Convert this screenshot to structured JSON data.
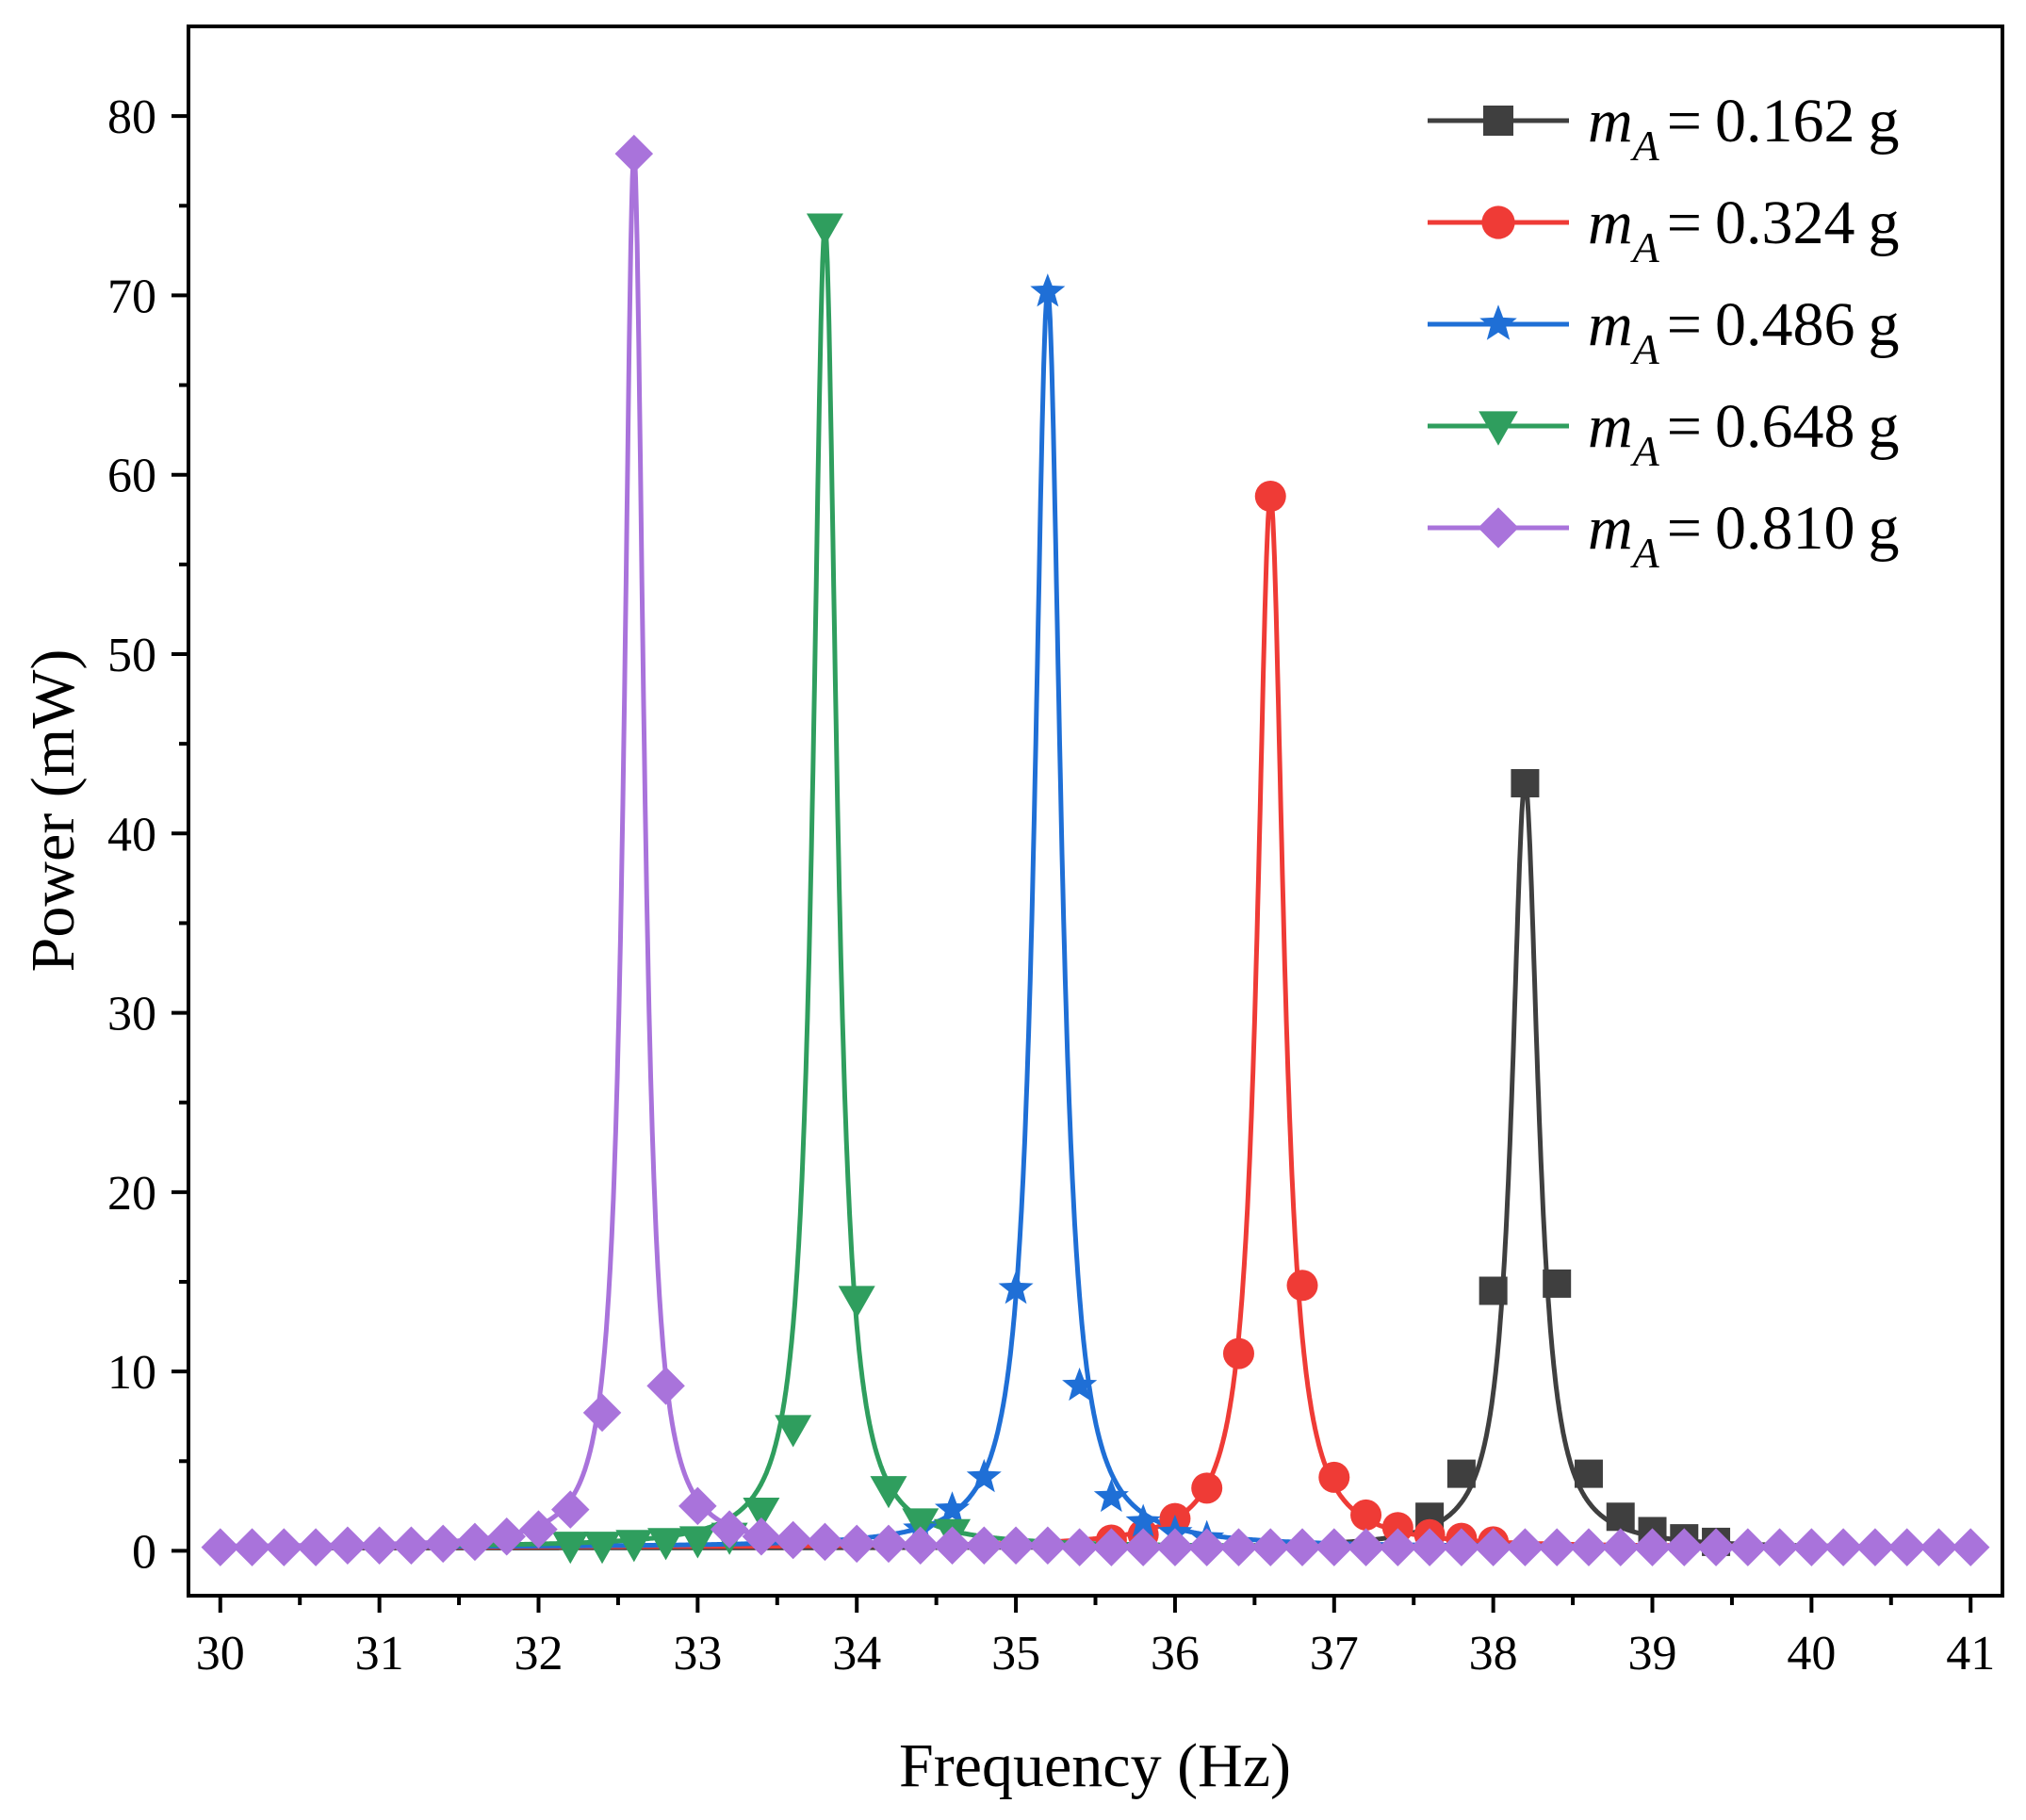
{
  "chart_data": {
    "type": "line",
    "title": "",
    "xlabel": "Frequency (Hz)",
    "ylabel": "Power (mW)",
    "xlim": [
      29.8,
      41.2
    ],
    "ylim": [
      -2.5,
      85
    ],
    "x_ticks": [
      30,
      31,
      32,
      33,
      34,
      35,
      36,
      37,
      38,
      39,
      40,
      41
    ],
    "y_ticks": [
      0,
      10,
      20,
      30,
      40,
      50,
      60,
      70,
      80
    ],
    "grid": false,
    "legend_position": "top-right",
    "legend_equals": "=",
    "legend_unit": "g",
    "series": [
      {
        "name": "m_A = 0.162 g",
        "symbol": "m",
        "subscript": "A",
        "value_label": "0.162",
        "color": "#3f3f3f",
        "marker": "square",
        "peak_x": 38.2,
        "peak_y": 42.8,
        "gamma": 0.101,
        "baseline": 0.15,
        "points": [
          [
            37.6,
            1.9
          ],
          [
            37.8,
            4.3
          ],
          [
            38.0,
            14.5
          ],
          [
            38.2,
            42.8
          ],
          [
            38.4,
            14.9
          ],
          [
            38.6,
            4.3
          ],
          [
            38.8,
            1.9
          ],
          [
            39.0,
            1.1
          ],
          [
            39.2,
            0.7
          ],
          [
            39.4,
            0.5
          ]
        ]
      },
      {
        "name": "m_A = 0.324 g",
        "symbol": "m",
        "subscript": "A",
        "value_label": "0.324",
        "color": "#ef3b36",
        "marker": "circle",
        "peak_x": 36.6,
        "peak_y": 58.8,
        "gamma": 0.1,
        "baseline": 0.2,
        "points": [
          [
            35.6,
            0.6
          ],
          [
            35.8,
            0.9
          ],
          [
            36.0,
            1.8
          ],
          [
            36.2,
            3.5
          ],
          [
            36.4,
            11.0
          ],
          [
            36.6,
            58.8
          ],
          [
            36.8,
            14.8
          ],
          [
            37.0,
            4.1
          ],
          [
            37.2,
            2.0
          ],
          [
            37.4,
            1.3
          ],
          [
            37.6,
            0.9
          ],
          [
            37.8,
            0.7
          ],
          [
            38.0,
            0.5
          ]
        ]
      },
      {
        "name": "m_A = 0.486 g",
        "symbol": "m",
        "subscript": "A",
        "value_label": "0.486",
        "color": "#1f6fd6",
        "marker": "star",
        "peak_x": 35.2,
        "peak_y": 70.2,
        "gamma": 0.1,
        "baseline": 0.2,
        "points": [
          [
            34.4,
            1.2
          ],
          [
            34.6,
            2.3
          ],
          [
            34.8,
            4.1
          ],
          [
            35.0,
            14.6
          ],
          [
            35.2,
            70.2
          ],
          [
            35.4,
            9.2
          ],
          [
            35.6,
            3.0
          ],
          [
            35.8,
            1.6
          ],
          [
            36.0,
            1.0
          ],
          [
            36.2,
            0.7
          ]
        ]
      },
      {
        "name": "m_A = 0.648 g",
        "symbol": "m",
        "subscript": "A",
        "value_label": "0.648",
        "color": "#2f9e5e",
        "marker": "triangle-down",
        "peak_x": 33.8,
        "peak_y": 73.8,
        "gamma": 0.09,
        "baseline": 0.2,
        "points": [
          [
            32.2,
            0.3
          ],
          [
            32.4,
            0.3
          ],
          [
            32.6,
            0.4
          ],
          [
            32.8,
            0.5
          ],
          [
            33.0,
            0.6
          ],
          [
            33.2,
            0.8
          ],
          [
            33.4,
            2.2
          ],
          [
            33.6,
            6.8
          ],
          [
            33.8,
            73.8
          ],
          [
            34.0,
            14.0
          ],
          [
            34.2,
            3.4
          ],
          [
            34.4,
            1.6
          ],
          [
            34.6,
            1.0
          ]
        ]
      },
      {
        "name": "m_A = 0.810 g",
        "symbol": "m",
        "subscript": "A",
        "value_label": "0.810",
        "color": "#a973db",
        "marker": "diamond",
        "peak_x": 32.6,
        "peak_y": 77.9,
        "gamma": 0.075,
        "baseline": 0.2,
        "points": [
          [
            30.0,
            0.2
          ],
          [
            30.2,
            0.2
          ],
          [
            30.4,
            0.2
          ],
          [
            30.6,
            0.2
          ],
          [
            30.8,
            0.3
          ],
          [
            31.0,
            0.3
          ],
          [
            31.2,
            0.3
          ],
          [
            31.4,
            0.4
          ],
          [
            31.6,
            0.5
          ],
          [
            31.8,
            0.8
          ],
          [
            32.0,
            1.2
          ],
          [
            32.2,
            2.3
          ],
          [
            32.4,
            7.7
          ],
          [
            32.6,
            77.9
          ],
          [
            32.8,
            9.2
          ],
          [
            33.0,
            2.5
          ],
          [
            33.2,
            1.2
          ],
          [
            33.4,
            0.8
          ],
          [
            33.6,
            0.6
          ],
          [
            33.8,
            0.5
          ],
          [
            34.0,
            0.4
          ],
          [
            34.2,
            0.4
          ],
          [
            34.4,
            0.3
          ],
          [
            34.6,
            0.3
          ],
          [
            34.8,
            0.3
          ],
          [
            35.0,
            0.3
          ],
          [
            35.2,
            0.3
          ],
          [
            35.4,
            0.2
          ],
          [
            35.6,
            0.2
          ],
          [
            35.8,
            0.2
          ],
          [
            36.0,
            0.2
          ],
          [
            36.2,
            0.2
          ],
          [
            36.4,
            0.2
          ],
          [
            36.6,
            0.2
          ],
          [
            36.8,
            0.2
          ],
          [
            37.0,
            0.2
          ],
          [
            37.2,
            0.2
          ],
          [
            37.4,
            0.2
          ],
          [
            37.6,
            0.2
          ],
          [
            37.8,
            0.2
          ],
          [
            38.0,
            0.2
          ],
          [
            38.2,
            0.2
          ],
          [
            38.4,
            0.2
          ],
          [
            38.6,
            0.2
          ],
          [
            38.8,
            0.2
          ],
          [
            39.0,
            0.2
          ],
          [
            39.2,
            0.2
          ],
          [
            39.4,
            0.2
          ],
          [
            39.6,
            0.2
          ],
          [
            39.8,
            0.2
          ],
          [
            40.0,
            0.2
          ],
          [
            40.2,
            0.2
          ],
          [
            40.4,
            0.2
          ],
          [
            40.6,
            0.2
          ],
          [
            40.8,
            0.2
          ],
          [
            41.0,
            0.2
          ]
        ]
      }
    ]
  }
}
